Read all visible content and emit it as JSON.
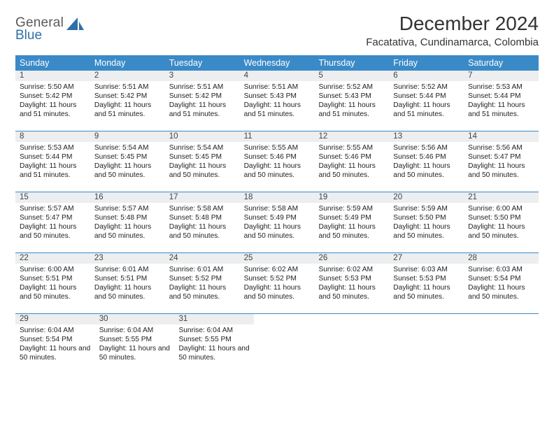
{
  "brand": {
    "word1": "General",
    "word2": "Blue"
  },
  "colors": {
    "header_bg": "#3a8ac7",
    "daynum_bg": "#eceeef",
    "week_border": "#3a8ac7",
    "logo_blue": "#2f6fa7",
    "logo_gray": "#5a5a5a",
    "text": "#222222"
  },
  "title": "December 2024",
  "location": "Facatativa, Cundinamarca, Colombia",
  "day_headers": [
    "Sunday",
    "Monday",
    "Tuesday",
    "Wednesday",
    "Thursday",
    "Friday",
    "Saturday"
  ],
  "weeks": [
    [
      {
        "n": "1",
        "sr": "5:50 AM",
        "ss": "5:42 PM",
        "dl": "11 hours and 51 minutes."
      },
      {
        "n": "2",
        "sr": "5:51 AM",
        "ss": "5:42 PM",
        "dl": "11 hours and 51 minutes."
      },
      {
        "n": "3",
        "sr": "5:51 AM",
        "ss": "5:42 PM",
        "dl": "11 hours and 51 minutes."
      },
      {
        "n": "4",
        "sr": "5:51 AM",
        "ss": "5:43 PM",
        "dl": "11 hours and 51 minutes."
      },
      {
        "n": "5",
        "sr": "5:52 AM",
        "ss": "5:43 PM",
        "dl": "11 hours and 51 minutes."
      },
      {
        "n": "6",
        "sr": "5:52 AM",
        "ss": "5:44 PM",
        "dl": "11 hours and 51 minutes."
      },
      {
        "n": "7",
        "sr": "5:53 AM",
        "ss": "5:44 PM",
        "dl": "11 hours and 51 minutes."
      }
    ],
    [
      {
        "n": "8",
        "sr": "5:53 AM",
        "ss": "5:44 PM",
        "dl": "11 hours and 51 minutes."
      },
      {
        "n": "9",
        "sr": "5:54 AM",
        "ss": "5:45 PM",
        "dl": "11 hours and 50 minutes."
      },
      {
        "n": "10",
        "sr": "5:54 AM",
        "ss": "5:45 PM",
        "dl": "11 hours and 50 minutes."
      },
      {
        "n": "11",
        "sr": "5:55 AM",
        "ss": "5:46 PM",
        "dl": "11 hours and 50 minutes."
      },
      {
        "n": "12",
        "sr": "5:55 AM",
        "ss": "5:46 PM",
        "dl": "11 hours and 50 minutes."
      },
      {
        "n": "13",
        "sr": "5:56 AM",
        "ss": "5:46 PM",
        "dl": "11 hours and 50 minutes."
      },
      {
        "n": "14",
        "sr": "5:56 AM",
        "ss": "5:47 PM",
        "dl": "11 hours and 50 minutes."
      }
    ],
    [
      {
        "n": "15",
        "sr": "5:57 AM",
        "ss": "5:47 PM",
        "dl": "11 hours and 50 minutes."
      },
      {
        "n": "16",
        "sr": "5:57 AM",
        "ss": "5:48 PM",
        "dl": "11 hours and 50 minutes."
      },
      {
        "n": "17",
        "sr": "5:58 AM",
        "ss": "5:48 PM",
        "dl": "11 hours and 50 minutes."
      },
      {
        "n": "18",
        "sr": "5:58 AM",
        "ss": "5:49 PM",
        "dl": "11 hours and 50 minutes."
      },
      {
        "n": "19",
        "sr": "5:59 AM",
        "ss": "5:49 PM",
        "dl": "11 hours and 50 minutes."
      },
      {
        "n": "20",
        "sr": "5:59 AM",
        "ss": "5:50 PM",
        "dl": "11 hours and 50 minutes."
      },
      {
        "n": "21",
        "sr": "6:00 AM",
        "ss": "5:50 PM",
        "dl": "11 hours and 50 minutes."
      }
    ],
    [
      {
        "n": "22",
        "sr": "6:00 AM",
        "ss": "5:51 PM",
        "dl": "11 hours and 50 minutes."
      },
      {
        "n": "23",
        "sr": "6:01 AM",
        "ss": "5:51 PM",
        "dl": "11 hours and 50 minutes."
      },
      {
        "n": "24",
        "sr": "6:01 AM",
        "ss": "5:52 PM",
        "dl": "11 hours and 50 minutes."
      },
      {
        "n": "25",
        "sr": "6:02 AM",
        "ss": "5:52 PM",
        "dl": "11 hours and 50 minutes."
      },
      {
        "n": "26",
        "sr": "6:02 AM",
        "ss": "5:53 PM",
        "dl": "11 hours and 50 minutes."
      },
      {
        "n": "27",
        "sr": "6:03 AM",
        "ss": "5:53 PM",
        "dl": "11 hours and 50 minutes."
      },
      {
        "n": "28",
        "sr": "6:03 AM",
        "ss": "5:54 PM",
        "dl": "11 hours and 50 minutes."
      }
    ],
    [
      {
        "n": "29",
        "sr": "6:04 AM",
        "ss": "5:54 PM",
        "dl": "11 hours and 50 minutes."
      },
      {
        "n": "30",
        "sr": "6:04 AM",
        "ss": "5:55 PM",
        "dl": "11 hours and 50 minutes."
      },
      {
        "n": "31",
        "sr": "6:04 AM",
        "ss": "5:55 PM",
        "dl": "11 hours and 50 minutes."
      },
      null,
      null,
      null,
      null
    ]
  ],
  "labels": {
    "sunrise": "Sunrise:",
    "sunset": "Sunset:",
    "daylight": "Daylight:"
  }
}
